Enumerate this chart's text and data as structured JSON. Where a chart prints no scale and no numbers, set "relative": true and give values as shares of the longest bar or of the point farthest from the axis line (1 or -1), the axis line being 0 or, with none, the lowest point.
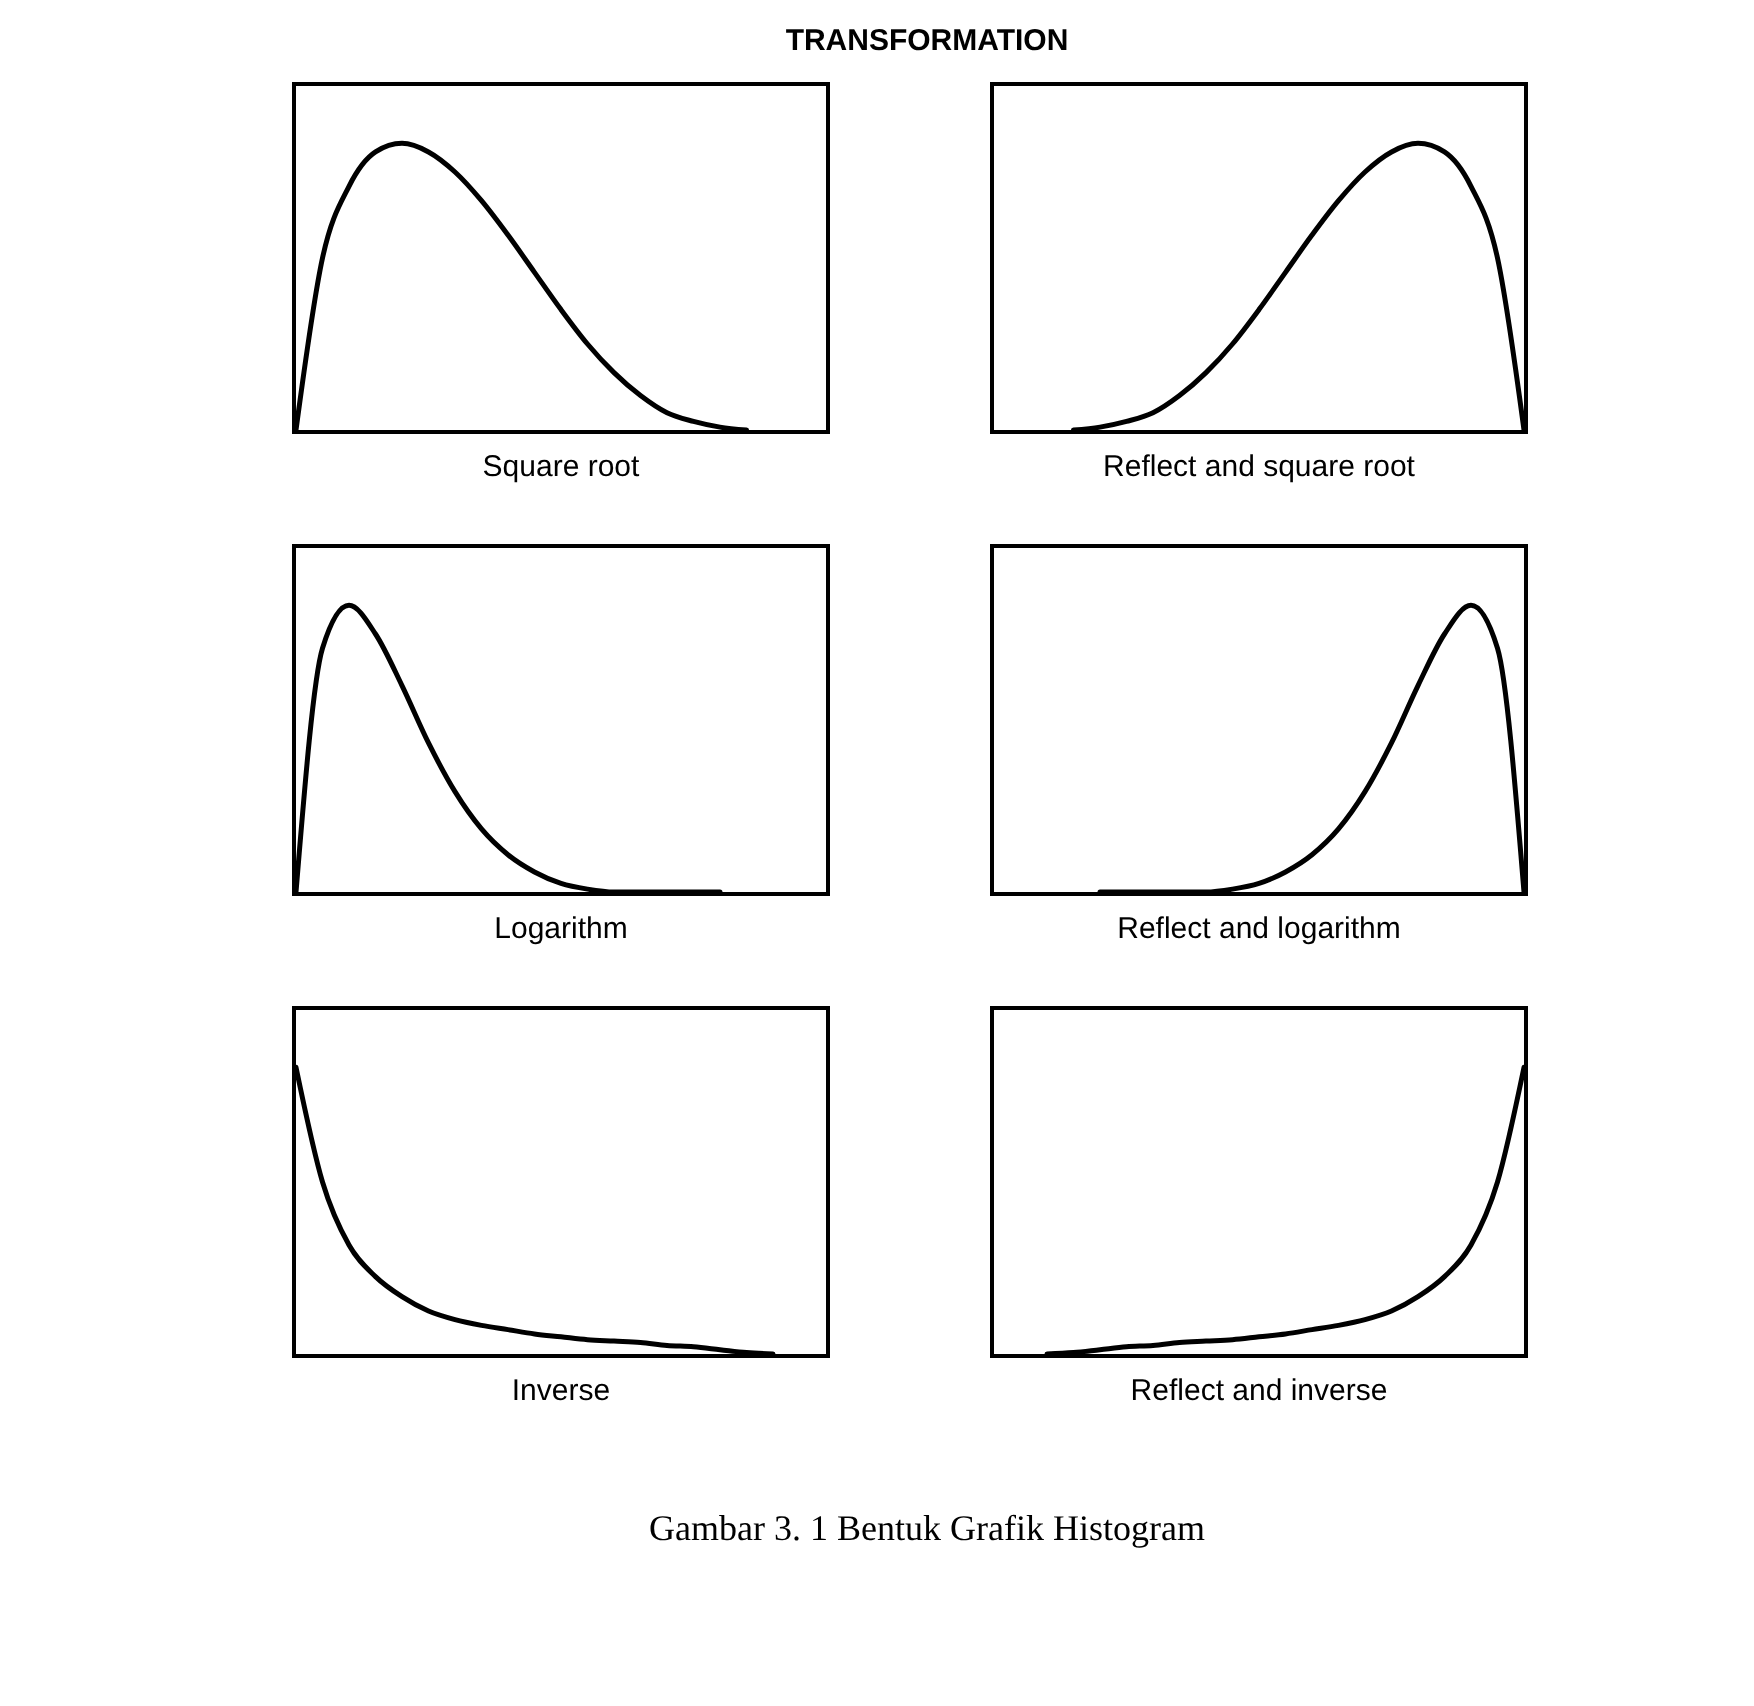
{
  "chart_data": [
    {
      "type": "line",
      "title": "TRANSFORMATION",
      "xlabel": "Square root",
      "relative": true,
      "marker": "none",
      "tick_labels": false,
      "categories": [
        null,
        null,
        null,
        null,
        null,
        null,
        null,
        null,
        null,
        null,
        null,
        null,
        null,
        null,
        null,
        null,
        null,
        null,
        null,
        null,
        null
      ],
      "series": [
        {
          "color": "#000000",
          "values": [
            0,
            0.6,
            0.85,
            0.97,
            1,
            0.97,
            0.9,
            0.8,
            0.68,
            0.55,
            0.42,
            0.3,
            0.2,
            0.12,
            0.06,
            0.03,
            0.01,
            0,
            null,
            null,
            null
          ]
        }
      ]
    },
    {
      "type": "line",
      "xlabel": "Reflect and square root",
      "relative": true,
      "marker": "none",
      "tick_labels": false,
      "categories": [
        null,
        null,
        null,
        null,
        null,
        null,
        null,
        null,
        null,
        null,
        null,
        null,
        null,
        null,
        null,
        null,
        null,
        null,
        null,
        null,
        null
      ],
      "series": [
        {
          "color": "#000000",
          "values": [
            null,
            null,
            null,
            0,
            0.01,
            0.03,
            0.06,
            0.12,
            0.2,
            0.3,
            0.42,
            0.55,
            0.68,
            0.8,
            0.9,
            0.97,
            1,
            0.97,
            0.85,
            0.6,
            0
          ]
        }
      ]
    },
    {
      "type": "line",
      "xlabel": "Logarithm",
      "relative": true,
      "marker": "none",
      "tick_labels": false,
      "categories": [
        null,
        null,
        null,
        null,
        null,
        null,
        null,
        null,
        null,
        null,
        null,
        null,
        null,
        null,
        null,
        null,
        null,
        null,
        null,
        null,
        null
      ],
      "series": [
        {
          "color": "#000000",
          "values": [
            0,
            0.85,
            1,
            0.9,
            0.72,
            0.52,
            0.35,
            0.22,
            0.13,
            0.07,
            0.03,
            0.01,
            0,
            0,
            0,
            0,
            0,
            null,
            null,
            null,
            null
          ]
        }
      ]
    },
    {
      "type": "line",
      "xlabel": "Reflect and logarithm",
      "relative": true,
      "marker": "none",
      "tick_labels": false,
      "categories": [
        null,
        null,
        null,
        null,
        null,
        null,
        null,
        null,
        null,
        null,
        null,
        null,
        null,
        null,
        null,
        null,
        null,
        null,
        null,
        null,
        null
      ],
      "series": [
        {
          "color": "#000000",
          "values": [
            null,
            null,
            null,
            null,
            0,
            0,
            0,
            0,
            0,
            0.01,
            0.03,
            0.07,
            0.13,
            0.22,
            0.35,
            0.52,
            0.72,
            0.9,
            1,
            0.85,
            0
          ]
        }
      ]
    },
    {
      "type": "line",
      "xlabel": "Inverse",
      "relative": true,
      "marker": "none",
      "tick_labels": false,
      "categories": [
        null,
        null,
        null,
        null,
        null,
        null,
        null,
        null,
        null,
        null,
        null,
        null,
        null,
        null,
        null,
        null,
        null,
        null,
        null,
        null,
        null
      ],
      "series": [
        {
          "color": "#000000",
          "values": [
            1,
            0.6,
            0.38,
            0.27,
            0.2,
            0.15,
            0.12,
            0.1,
            0.085,
            0.07,
            0.06,
            0.05,
            0.045,
            0.04,
            0.03,
            0.025,
            0.015,
            0.005,
            0,
            null,
            null
          ]
        }
      ]
    },
    {
      "type": "line",
      "xlabel": "Reflect and inverse",
      "relative": true,
      "marker": "none",
      "tick_labels": false,
      "annotations": [
        "Gambar 3. 1 Bentuk Grafik Histogram"
      ],
      "categories": [
        null,
        null,
        null,
        null,
        null,
        null,
        null,
        null,
        null,
        null,
        null,
        null,
        null,
        null,
        null,
        null,
        null,
        null,
        null,
        null,
        null
      ],
      "series": [
        {
          "color": "#000000",
          "values": [
            null,
            null,
            0,
            0.005,
            0.015,
            0.025,
            0.03,
            0.04,
            0.045,
            0.05,
            0.06,
            0.07,
            0.085,
            0.1,
            0.12,
            0.15,
            0.2,
            0.27,
            0.38,
            0.6,
            1
          ]
        }
      ]
    }
  ]
}
